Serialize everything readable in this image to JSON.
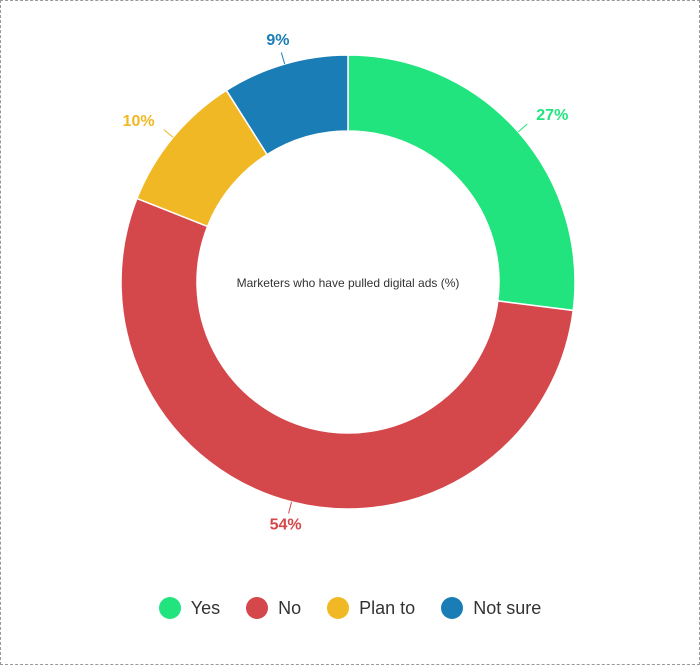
{
  "chart_data": {
    "type": "donut",
    "title": "Marketers who have pulled digital ads (%)",
    "categories": [
      "Yes",
      "No",
      "Plan to",
      "Not sure"
    ],
    "values": [
      27,
      54,
      10,
      9
    ],
    "value_labels": [
      "27%",
      "54%",
      "10%",
      "9%"
    ],
    "colors": [
      "#22e47f",
      "#d4474b",
      "#f0b824",
      "#1a7db6"
    ],
    "legend": "bottom"
  }
}
